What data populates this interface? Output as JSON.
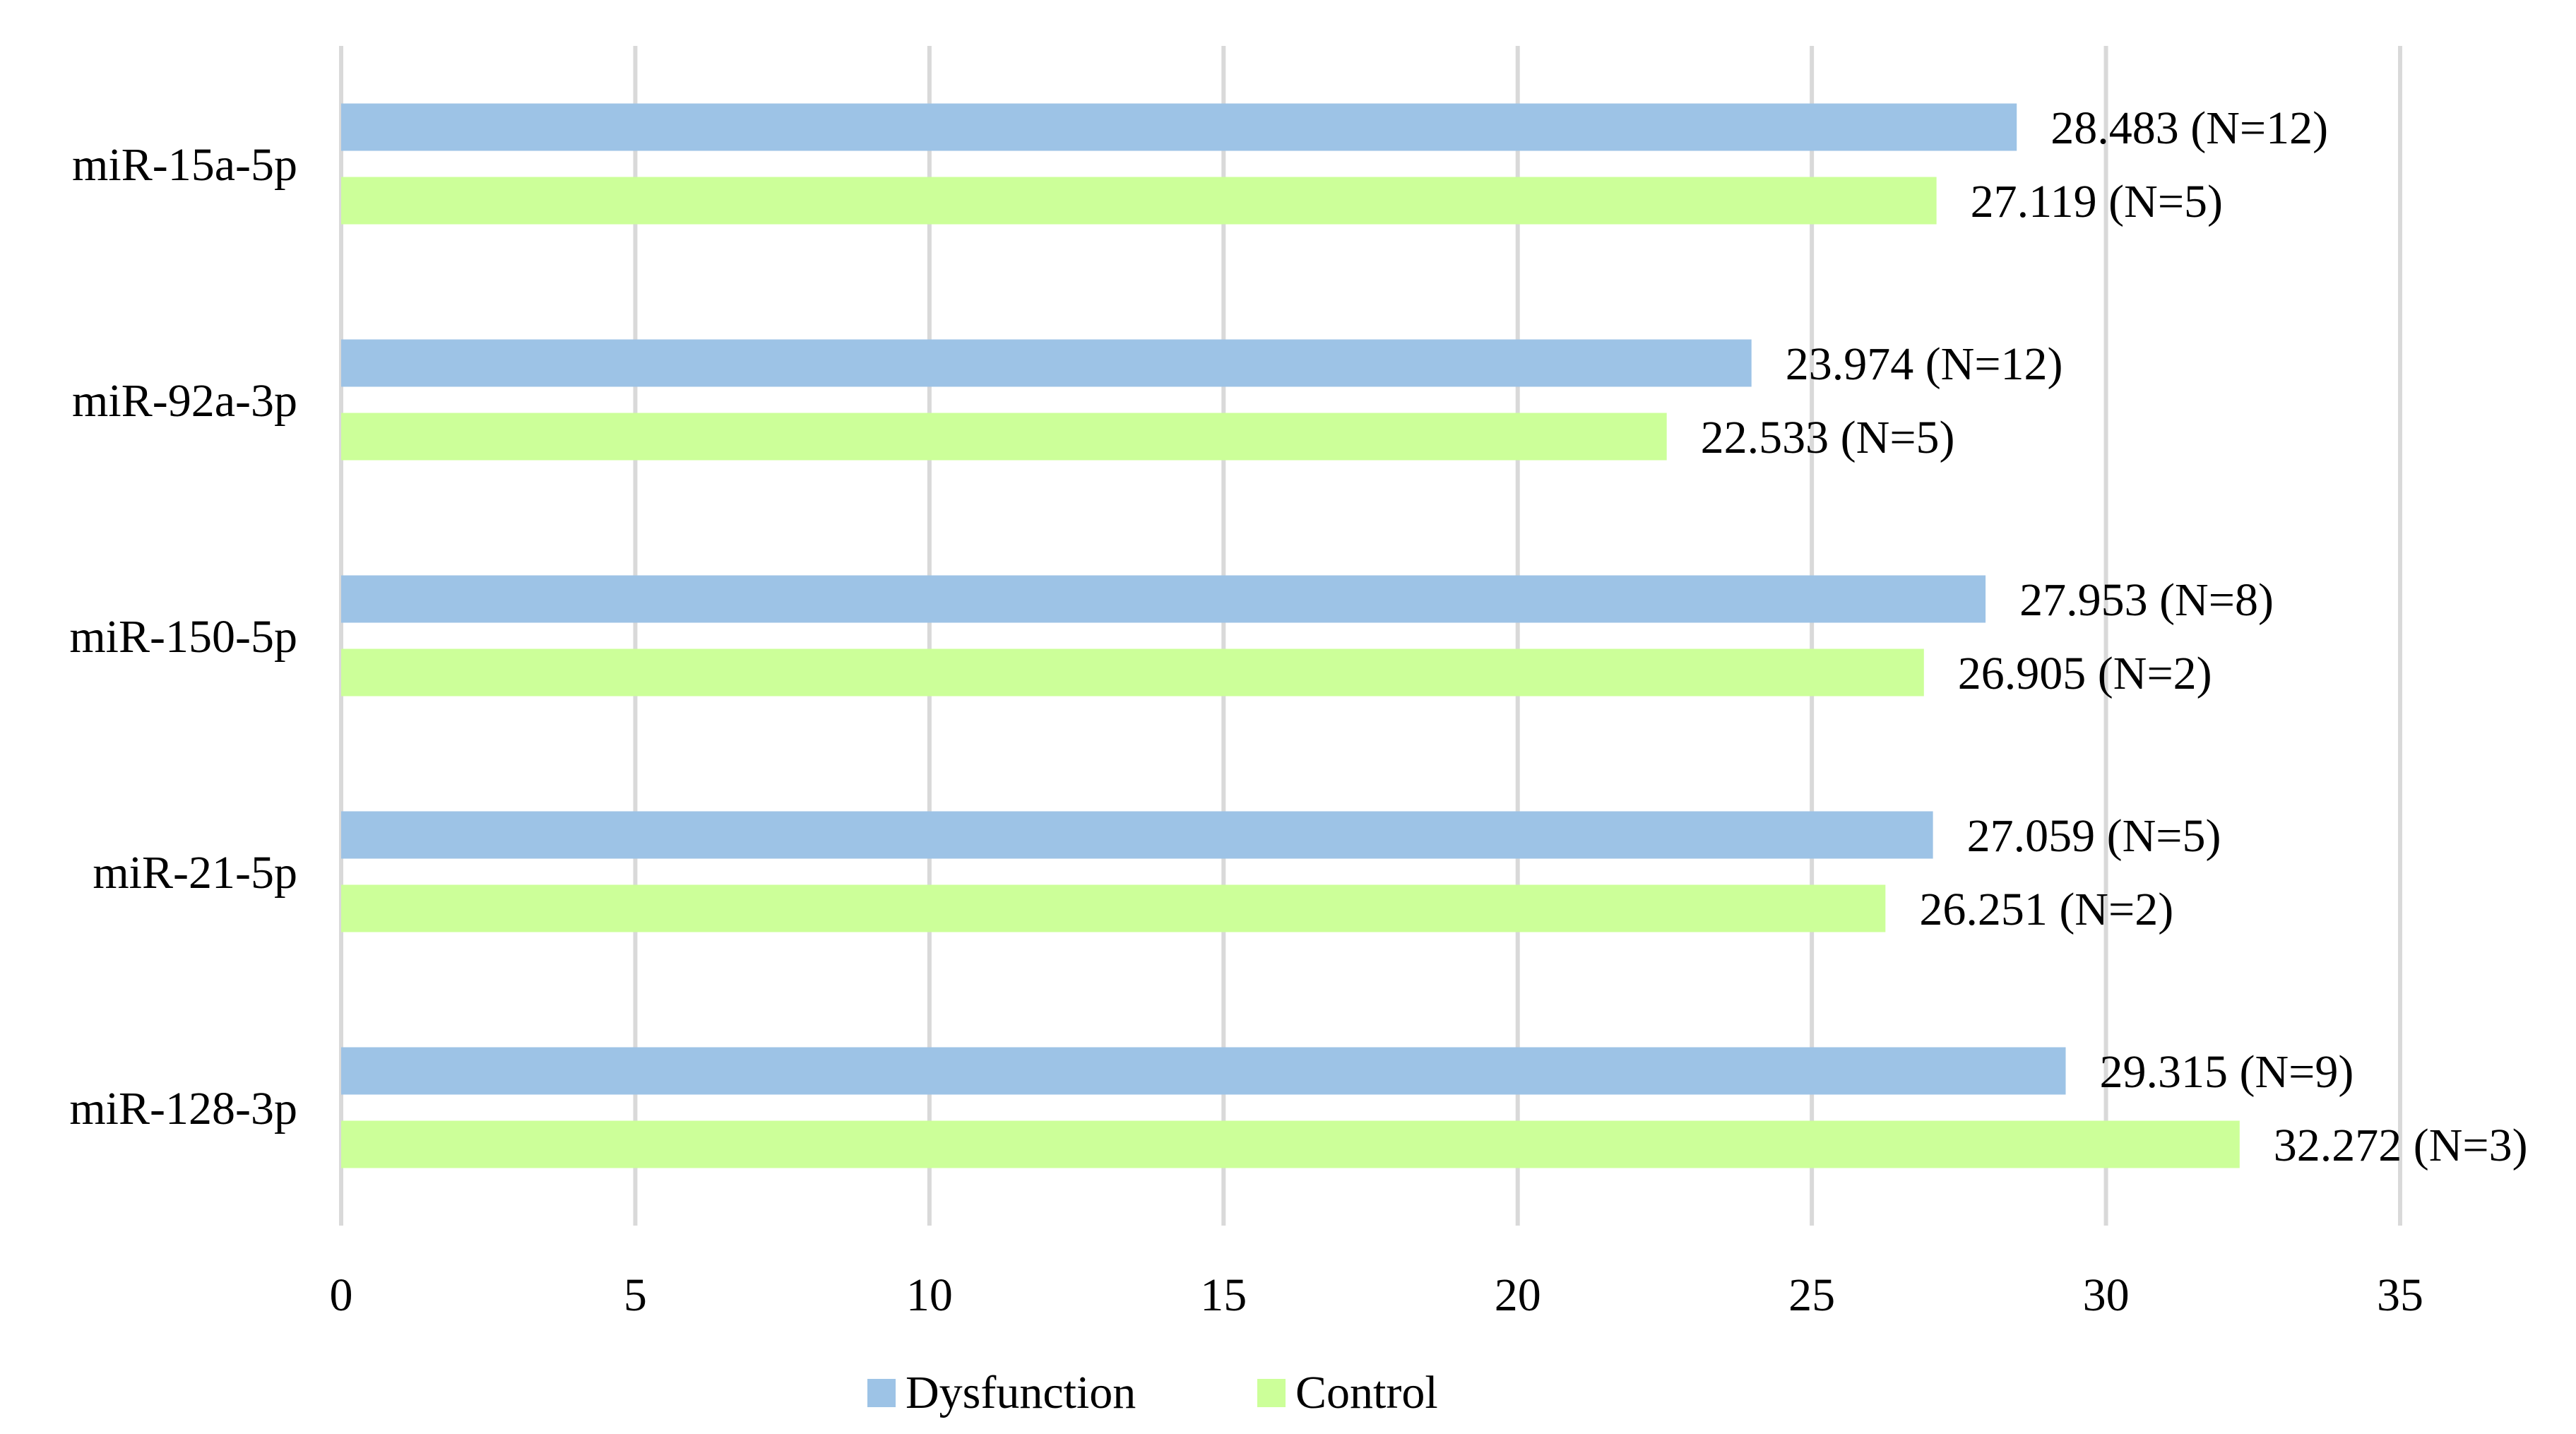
{
  "chart_data": {
    "type": "bar",
    "orientation": "horizontal",
    "title": "",
    "xlabel": "",
    "ylabel": "",
    "xlim": [
      0,
      35
    ],
    "xticks": [
      0,
      5,
      10,
      15,
      20,
      25,
      30,
      35
    ],
    "grid": true,
    "legend_position": "bottom",
    "categories": [
      "miR-15a-5p",
      "miR-92a-3p",
      "miR-150-5p",
      "miR-21-5p",
      "miR-128-3p"
    ],
    "series": [
      {
        "name": "Dysfunction",
        "color": "#9DC3E6",
        "values": [
          28.483,
          23.974,
          27.953,
          27.059,
          29.315
        ],
        "labels": [
          "28.483 (N=12)",
          "23.974 (N=12)",
          "27.953 (N=8)",
          "27.059 (N=5)",
          "29.315 (N=9)"
        ]
      },
      {
        "name": "Control",
        "color": "#CCFF99",
        "values": [
          27.119,
          22.533,
          26.905,
          26.251,
          32.272
        ],
        "labels": [
          "27.119 (N=5)",
          "22.533 (N=5)",
          "26.905 (N=2)",
          "26.251 (N=2)",
          "32.272 (N=3)"
        ]
      }
    ],
    "gridline_color": "#D9D9D9"
  }
}
